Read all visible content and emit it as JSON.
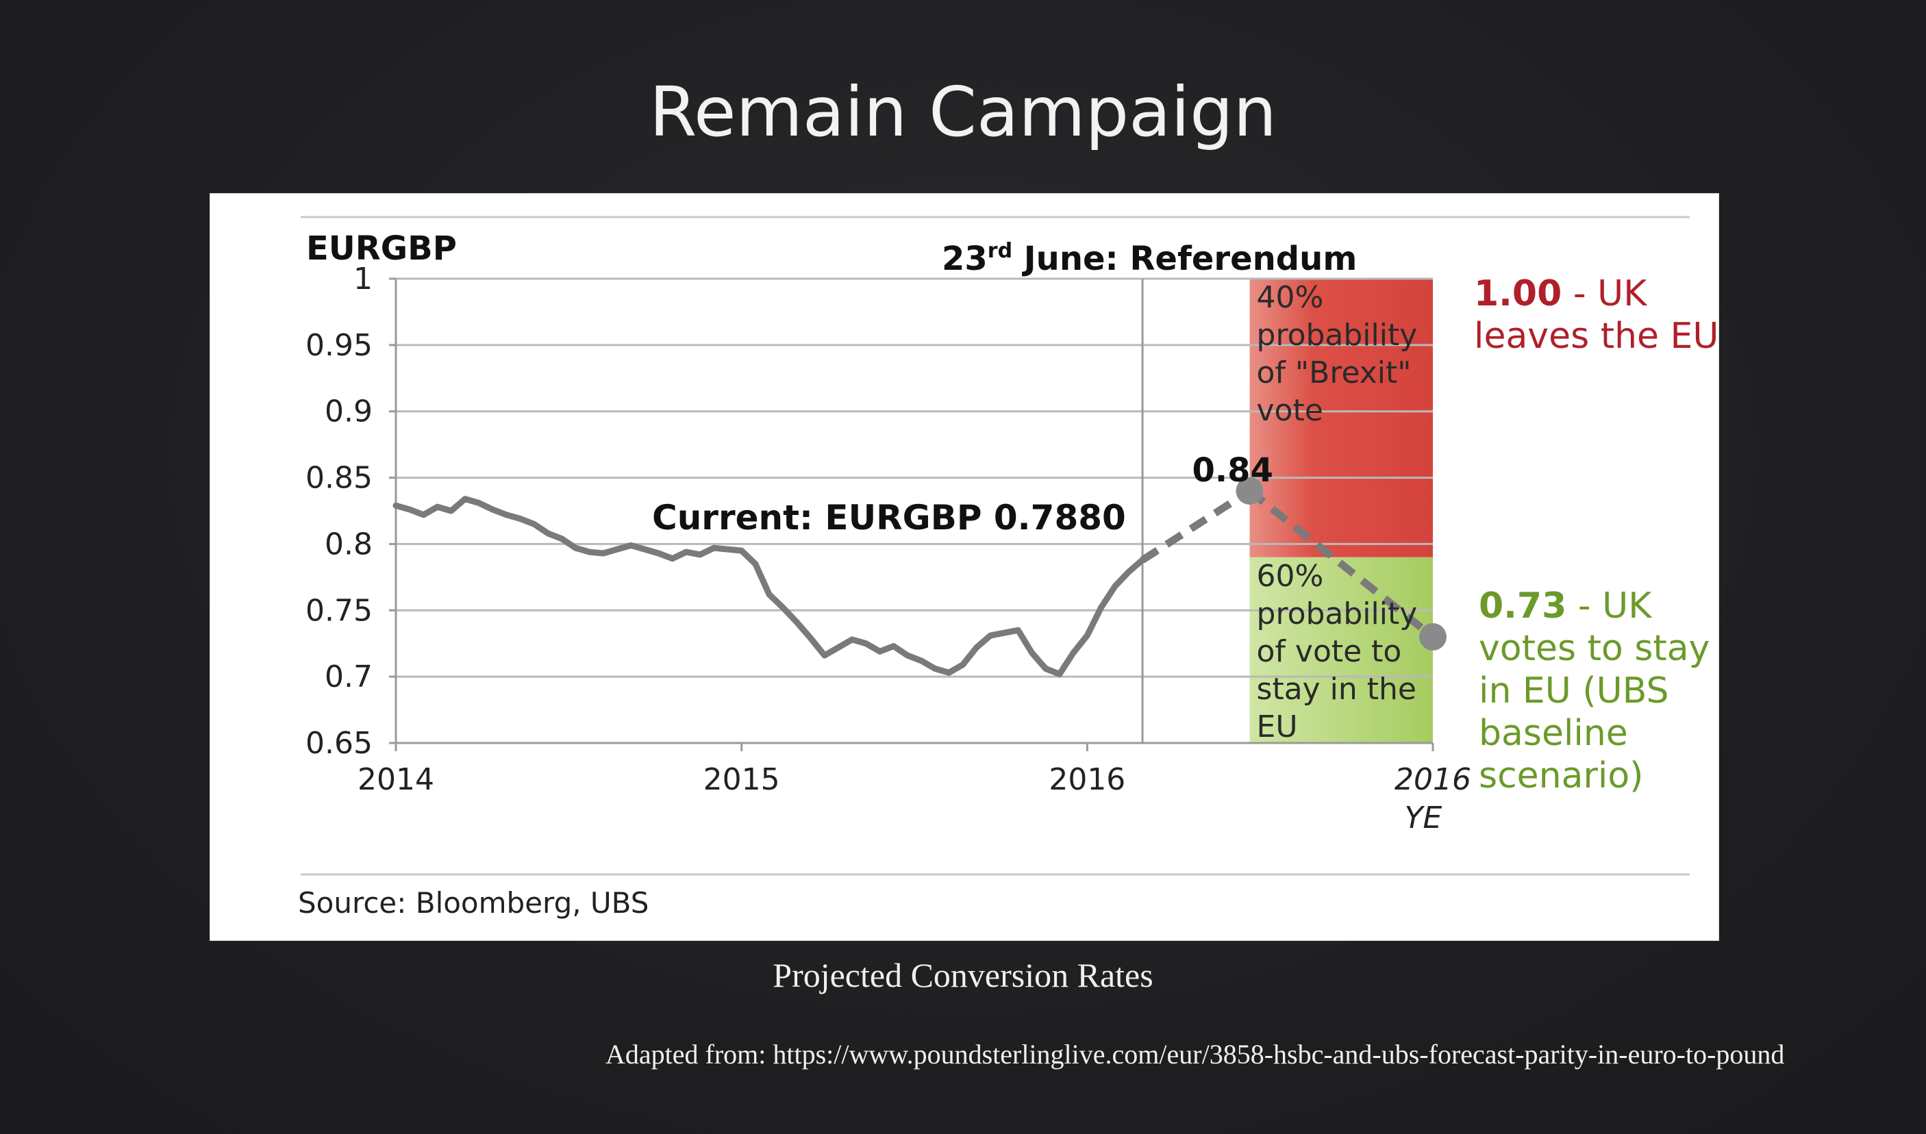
{
  "slide": {
    "title": "Remain Campaign",
    "caption": "Projected Conversion Rates",
    "adapted_from": "Adapted from: https://www.poundsterlinglive.com/eur/3858-hsbc-and-ubs-forecast-parity-in-euro-to-pound"
  },
  "chart_data": {
    "type": "line",
    "ylabel": "EURGBP",
    "ylim": [
      0.65,
      1.0
    ],
    "yticks": [
      "0.65",
      "0.7",
      "0.75",
      "0.8",
      "0.85",
      "0.9",
      "0.95",
      "1"
    ],
    "xticks": [
      {
        "value": 2014.0,
        "label": "2014"
      },
      {
        "value": 2015.0,
        "label": "2015"
      },
      {
        "value": 2016.0,
        "label": "2016"
      },
      {
        "value": 2017.0,
        "label": "2016",
        "sublabel": "YE"
      }
    ],
    "grid": true,
    "series": [
      {
        "values": [
          [
            2014.0,
            0.829
          ],
          [
            2014.04,
            0.826
          ],
          [
            2014.08,
            0.822
          ],
          [
            2014.12,
            0.828
          ],
          [
            2014.16,
            0.825
          ],
          [
            2014.2,
            0.834
          ],
          [
            2014.24,
            0.831
          ],
          [
            2014.28,
            0.826
          ],
          [
            2014.32,
            0.822
          ],
          [
            2014.36,
            0.819
          ],
          [
            2014.4,
            0.815
          ],
          [
            2014.44,
            0.808
          ],
          [
            2014.48,
            0.804
          ],
          [
            2014.52,
            0.797
          ],
          [
            2014.56,
            0.794
          ],
          [
            2014.6,
            0.793
          ],
          [
            2014.64,
            0.796
          ],
          [
            2014.68,
            0.799
          ],
          [
            2014.72,
            0.796
          ],
          [
            2014.76,
            0.793
          ],
          [
            2014.8,
            0.789
          ],
          [
            2014.84,
            0.794
          ],
          [
            2014.88,
            0.792
          ],
          [
            2014.92,
            0.797
          ],
          [
            2014.96,
            0.796
          ],
          [
            2015.0,
            0.795
          ],
          [
            2015.04,
            0.785
          ],
          [
            2015.08,
            0.762
          ],
          [
            2015.12,
            0.752
          ],
          [
            2015.16,
            0.741
          ],
          [
            2015.2,
            0.729
          ],
          [
            2015.24,
            0.716
          ],
          [
            2015.28,
            0.722
          ],
          [
            2015.32,
            0.728
          ],
          [
            2015.36,
            0.725
          ],
          [
            2015.4,
            0.719
          ],
          [
            2015.44,
            0.723
          ],
          [
            2015.48,
            0.716
          ],
          [
            2015.52,
            0.712
          ],
          [
            2015.56,
            0.706
          ],
          [
            2015.6,
            0.703
          ],
          [
            2015.64,
            0.709
          ],
          [
            2015.68,
            0.722
          ],
          [
            2015.72,
            0.731
          ],
          [
            2015.76,
            0.733
          ],
          [
            2015.8,
            0.735
          ],
          [
            2015.84,
            0.718
          ],
          [
            2015.88,
            0.706
          ],
          [
            2015.92,
            0.702
          ],
          [
            2015.96,
            0.718
          ],
          [
            2016.0,
            0.731
          ],
          [
            2016.04,
            0.752
          ],
          [
            2016.08,
            0.768
          ],
          [
            2016.12,
            0.779
          ],
          [
            2016.16,
            0.788
          ]
        ],
        "style": "solid"
      },
      {
        "values": [
          [
            2016.16,
            0.788
          ],
          [
            2016.47,
            0.84
          ]
        ],
        "style": "dashed"
      },
      {
        "values": [
          [
            2016.47,
            0.84
          ],
          [
            2017.0,
            0.73
          ]
        ],
        "style": "dashed"
      }
    ],
    "points": [
      {
        "x": 2016.47,
        "y": 0.84,
        "label": "0.84"
      },
      {
        "x": 2017.0,
        "y": 0.73,
        "label": ""
      }
    ],
    "referendum": {
      "x": 2016.16,
      "label_pre": "23",
      "label_sup": "rd",
      "label_post": " June: Referendum"
    },
    "bands": [
      {
        "y_from": 0.79,
        "y_to": 1.0,
        "x_from": 2016.47,
        "x_to": 2017.0,
        "color": "#d9433f",
        "lines": [
          "40%",
          "probability",
          "of \"Brexit\"",
          "vote"
        ]
      },
      {
        "y_from": 0.65,
        "y_to": 0.79,
        "x_from": 2016.47,
        "x_to": 2017.0,
        "color": "#a9cc66",
        "lines": [
          "60%",
          "probability",
          "of vote to",
          "stay in the",
          "EU"
        ]
      }
    ],
    "annotations": {
      "current": "Current: EURGBP 0.7880",
      "leave": {
        "value": "1.00",
        "lines": [
          " - UK",
          "leaves the EU"
        ],
        "color": "#b0202a"
      },
      "remain": {
        "value": "0.73",
        "lines": [
          " - UK",
          "votes to stay",
          "in EU (UBS",
          "baseline",
          "scenario)"
        ],
        "color": "#6b9a2a"
      }
    },
    "source": "Source:  Bloomberg, UBS"
  }
}
